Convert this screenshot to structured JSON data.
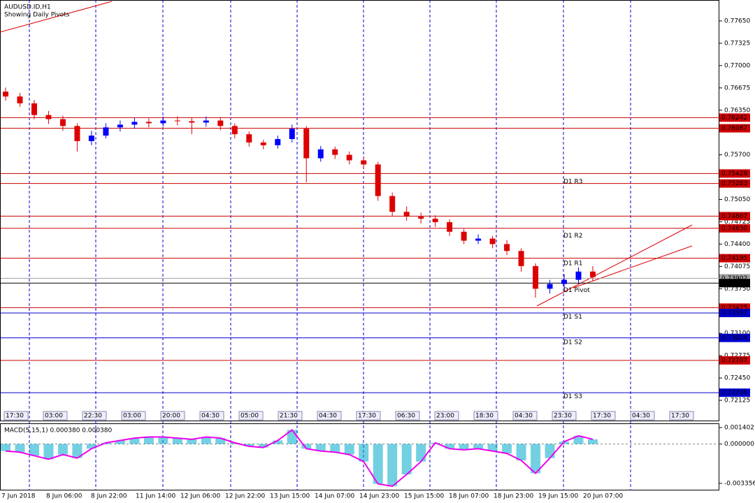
{
  "chart_data": {
    "type": "candlestick",
    "title": "AUDUSD.ID,H1",
    "subtitle": "Showing Daily Pivots",
    "ylim": [
      0.7182,
      0.77955
    ],
    "yticks": [
      {
        "value": 0.7765,
        "label": "0.77650"
      },
      0.77325,
      {
        "value": 0.77,
        "label": "0.77000"
      },
      0.76675,
      {
        "value": 0.7635,
        "label": "0.76350"
      },
      {
        "value": 0.757,
        "label": "0.75700"
      },
      {
        "value": 0.7505,
        "label": "0.75050"
      },
      0.74725,
      {
        "value": 0.744,
        "label": "0.74400"
      },
      0.74075,
      {
        "value": 0.7375,
        "label": "0.73750"
      },
      {
        "value": 0.731,
        "label": "0.73100"
      },
      0.72775,
      {
        "value": 0.7245,
        "label": "0.72450"
      },
      0.72125
    ],
    "levels": [
      {
        "value": 0.76242,
        "color": "#cc0000"
      },
      {
        "value": 0.76087,
        "color": "#cc0000"
      },
      {
        "value": 0.75428,
        "color": "#cc0000"
      },
      {
        "value": 0.75283,
        "color": "#cc0000"
      },
      {
        "value": 0.74807,
        "color": "#cc0000"
      },
      {
        "value": {
          "value": 0.7463,
          "label": "0.74630"
        },
        "color": "#cc0000"
      },
      {
        "value": 0.74195,
        "color": "#cc0000"
      },
      {
        "value": 0.73902,
        "color": "#a0a0a0"
      },
      {
        "value": 0.73832,
        "color": "#000000"
      },
      {
        "value": 0.73475,
        "color": "#cc0000"
      },
      {
        "value": 0.73397,
        "color": "#0000cc"
      },
      {
        "value": 0.73034,
        "color": "#0000cc"
      },
      {
        "value": 0.72707,
        "color": "#cc0000"
      },
      {
        "value": 0.72236,
        "color": "#0000cc"
      }
    ],
    "pivots": [
      {
        "name": "D1 R3",
        "value": 0.7537
      },
      {
        "name": "D1 R2",
        "value": 0.7458
      },
      {
        "name": "D1 R1",
        "value": 0.7418
      },
      {
        "name": "D1 Pivot",
        "value": 0.7379
      },
      {
        "name": "D1 S1",
        "value": 0.734
      },
      {
        "name": "D1 S2",
        "value": 0.7303
      },
      {
        "name": "D1 S3",
        "value": 0.7224
      }
    ],
    "open": [
      0.7662,
      0.7655,
      0.7645,
      0.7628,
      0.7622,
      0.7612,
      0.759,
      0.7598,
      0.761,
      0.7614,
      0.7618,
      0.7616,
      0.762,
      0.7619,
      0.7617,
      0.762,
      0.7612,
      0.76,
      0.7588,
      0.7584,
      0.7593,
      0.7608,
      0.7565,
      0.7578,
      0.757,
      0.7562,
      0.7556,
      0.751,
      0.7487,
      0.748,
      0.7477,
      0.7472,
      0.7458,
      0.7445,
      0.7448,
      0.744,
      0.743,
      0.7408,
      0.7375,
      0.7382,
      0.7388,
      0.74
    ],
    "high": [
      0.7668,
      0.766,
      0.765,
      0.7634,
      0.7627,
      0.7616,
      0.7605,
      0.7616,
      0.762,
      0.7624,
      0.7623,
      0.7626,
      0.7626,
      0.7624,
      0.7626,
      0.7625,
      0.7616,
      0.7604,
      0.7592,
      0.7598,
      0.7614,
      0.7612,
      0.7583,
      0.7582,
      0.7575,
      0.7566,
      0.756,
      0.7515,
      0.7495,
      0.7486,
      0.7482,
      0.7476,
      0.7462,
      0.7454,
      0.7452,
      0.7446,
      0.7434,
      0.7412,
      0.7388,
      0.7396,
      0.7406,
      0.7408
    ],
    "low": [
      0.7649,
      0.764,
      0.7622,
      0.7615,
      0.7605,
      0.7575,
      0.7584,
      0.7594,
      0.7604,
      0.7608,
      0.761,
      0.7611,
      0.7613,
      0.76,
      0.7611,
      0.7606,
      0.7594,
      0.7582,
      0.7578,
      0.7579,
      0.7588,
      0.753,
      0.756,
      0.7564,
      0.7556,
      0.7549,
      0.7503,
      0.748,
      0.7474,
      0.747,
      0.7465,
      0.7452,
      0.744,
      0.744,
      0.7434,
      0.7424,
      0.74,
      0.7362,
      0.7368,
      0.7376,
      0.7382,
      0.7386
    ],
    "close": [
      0.7655,
      0.7645,
      0.7628,
      0.7622,
      0.7612,
      0.759,
      0.7598,
      0.761,
      0.7614,
      0.7618,
      0.7616,
      0.762,
      0.7619,
      0.7617,
      0.762,
      0.7612,
      0.76,
      0.7588,
      0.7584,
      0.7593,
      0.7608,
      0.7565,
      0.7578,
      0.757,
      0.7562,
      0.7556,
      0.751,
      0.7487,
      0.748,
      0.7477,
      0.7472,
      0.7458,
      0.7445,
      0.7448,
      0.744,
      0.743,
      0.7408,
      0.7375,
      0.7382,
      0.7388,
      0.74,
      0.7392
    ],
    "bull_color": "#0000ff",
    "bear_color": "#dd0000",
    "xlabels": [
      "7 Jun 2018",
      "8 Jun 06:00",
      "8 Jun 22:00",
      "11 Jun 14:00",
      "12 Jun 06:00",
      "12 Jun 22:00",
      "13 Jun 15:00",
      "14 Jun 07:00",
      "14 Jun 23:00",
      "15 Jun 15:00",
      "18 Jun 07:00",
      "18 Jun 23:00",
      "19 Jun 15:00",
      "20 Jun 07:00"
    ],
    "time_boxes": [
      "17:30",
      "03:00",
      "22:30",
      "03:00",
      "20:00",
      "04:30",
      "05:00",
      "21:30",
      "04:30",
      "17:30",
      "06:30",
      "23:00",
      "18:30",
      "04:30",
      "23:30",
      "17:30",
      "04:30",
      "17:30"
    ],
    "macd": {
      "title": "MACD(5,15,1) 0.000380 0.000380",
      "color": "#00aacc",
      "line_color": "#ee00ee",
      "ylim": [
        -0.0039,
        0.0017
      ],
      "yticks": [
        0.001402,
        {
          "value": 0,
          "label": "0.000000"
        },
        -0.003356
      ],
      "values": [
        -0.0006,
        -0.0007,
        -0.001,
        -0.0013,
        -0.0009,
        -0.0012,
        -0.0004,
        0.0001,
        0.0003,
        0.0005,
        0.0006,
        0.0006,
        0.0005,
        0.0004,
        0.0006,
        0.0005,
        0.0001,
        -0.0002,
        -0.0003,
        0.0003,
        0.0012,
        -0.0004,
        -0.0006,
        -0.0007,
        -0.0009,
        -0.0015,
        -0.0034,
        -0.0036,
        -0.0026,
        -0.0015,
        0.0001,
        -0.0004,
        -0.0005,
        -0.0004,
        -0.0006,
        -0.0008,
        -0.0014,
        -0.0025,
        -0.0012,
        0.0002,
        0.0007,
        0.0004
      ]
    }
  }
}
